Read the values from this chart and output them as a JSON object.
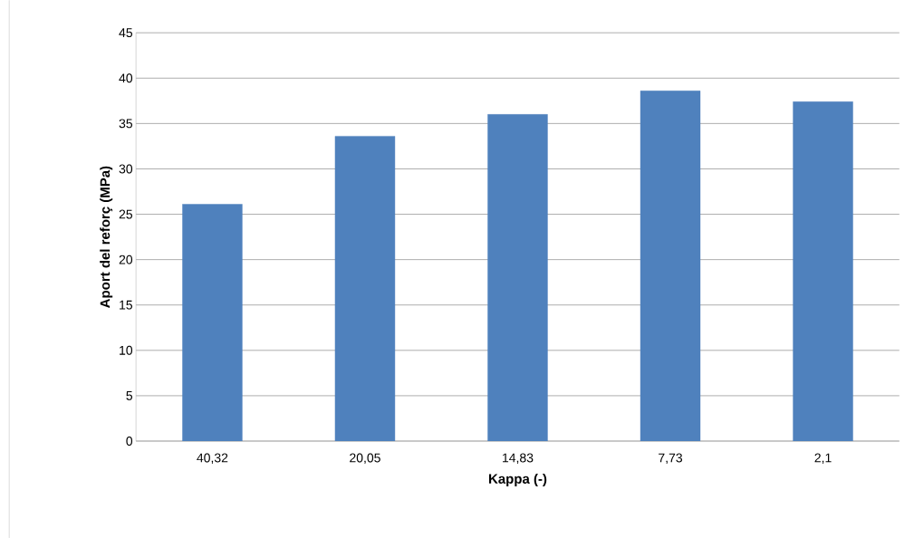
{
  "chart_data": {
    "type": "bar",
    "xlabel": "Kappa (-)",
    "ylabel": "Aport del reforç (MPa)",
    "categories": [
      "40,32",
      "20,05",
      "14,83",
      "7,73",
      "2,1"
    ],
    "values": [
      26.1,
      33.6,
      36.0,
      38.6,
      37.4
    ],
    "color": "#4f81bd",
    "ylim": [
      0,
      45
    ],
    "yticks": [
      0,
      5,
      10,
      15,
      20,
      25,
      30,
      35,
      40,
      45
    ],
    "grid": "y"
  }
}
